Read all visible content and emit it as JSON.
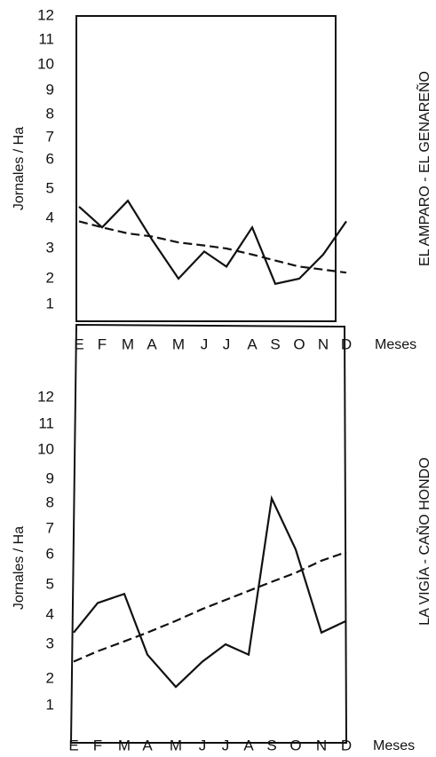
{
  "chart_data": [
    {
      "type": "line",
      "title": "EL AMPARO - EL GENAREÑO",
      "xlabel": "Meses",
      "ylabel": "Jornales / Ha",
      "categories": [
        "E",
        "F",
        "M",
        "A",
        "M",
        "J",
        "J",
        "A",
        "S",
        "O",
        "N",
        "D"
      ],
      "y_ticks": [
        "1",
        "2",
        "3",
        "4",
        "5",
        "6",
        "7",
        "8",
        "9",
        "10",
        "11",
        "12"
      ],
      "ylim": [
        0.4,
        12
      ],
      "grid": false,
      "series": [
        {
          "style": "solid",
          "values": [
            4.4,
            3.7,
            4.6,
            3.3,
            2.0,
            2.9,
            2.4,
            3.7,
            1.8,
            2.0,
            2.8,
            3.9
          ]
        },
        {
          "style": "dashed",
          "values": [
            3.9,
            3.7,
            3.5,
            3.4,
            3.2,
            3.1,
            3.0,
            2.8,
            2.6,
            2.4,
            2.3,
            2.2
          ]
        }
      ]
    },
    {
      "type": "line",
      "title": "LA VIGÍA - CAÑO HONDO",
      "xlabel": "Meses",
      "ylabel": "Jornales / Ha",
      "categories": [
        "E",
        "F",
        "M",
        "A",
        "M",
        "J",
        "J",
        "A",
        "S",
        "O",
        "N",
        "D"
      ],
      "y_ticks": [
        "1",
        "2",
        "3",
        "4",
        "5",
        "6",
        "7",
        "8",
        "9",
        "10",
        "11",
        "12"
      ],
      "ylim": [
        0.4,
        12
      ],
      "grid": false,
      "series": [
        {
          "style": "solid",
          "values": [
            3.4,
            4.4,
            4.7,
            2.7,
            1.7,
            2.5,
            3.0,
            2.7,
            8.2,
            6.2,
            3.4,
            3.8
          ]
        },
        {
          "style": "dashed",
          "values": [
            2.5,
            2.8,
            3.1,
            3.4,
            3.8,
            4.2,
            4.5,
            4.8,
            5.1,
            5.4,
            5.8,
            6.1
          ]
        }
      ]
    }
  ]
}
